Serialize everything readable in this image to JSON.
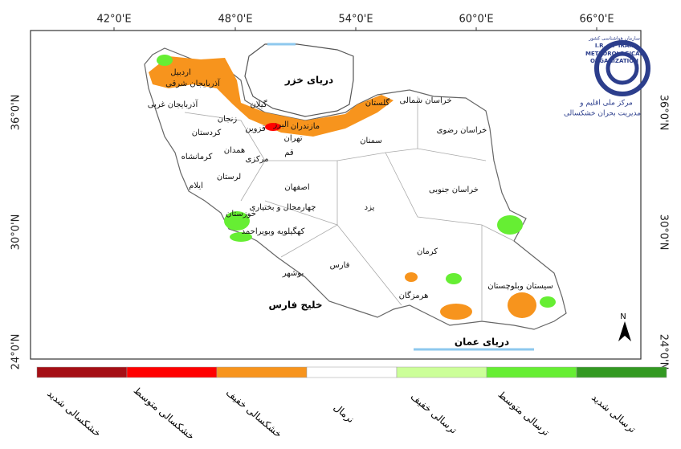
{
  "map": {
    "lon_labels": [
      "42°0'E",
      "48°0'E",
      "54°0'E",
      "60°0'E",
      "66°0'E"
    ],
    "lat_labels": [
      "36°0'N",
      "30°0'N",
      "24°0'N"
    ],
    "seas": [
      "دریای خزر",
      "خلیج فارس",
      "دریای عمان"
    ],
    "provinces": [
      "اردبیل",
      "آذربایجان شرقی",
      "آذربایجان غربی",
      "زنجان",
      "گیلان",
      "مازندران",
      "گلستان",
      "خراسان شمالی",
      "خراسان رضوی",
      "البرز",
      "قزوین",
      "تهران",
      "سمنان",
      "کردستان",
      "همدان",
      "کرمانشاه",
      "قم",
      "مرکزی",
      "لرستان",
      "ایلام",
      "اصفهان",
      "خراسان جنوبی",
      "چهارمحال و بختیاری",
      "یزد",
      "خوزستان",
      "کهگیلویه وبویراحمد",
      "کرمان",
      "فارس",
      "بوشهر",
      "هرمزگان",
      "سیستان وبلوچستان"
    ],
    "north": "N",
    "logo": [
      "سازمان هواشناسی کشور",
      "I.R. OF IRAN",
      "METEOROLOGICAL",
      "ORGANIZATION",
      "مرکز ملی اقلیم و",
      "مدیریت بحران خشکسالی"
    ],
    "legend": [
      {
        "label": "خشکسالی شدید",
        "color": "#a50f15"
      },
      {
        "label": "خشکسالی متوسط",
        "color": "#ff0000"
      },
      {
        "label": "خشکسالی خفیف",
        "color": "#f7941d"
      },
      {
        "label": "نرمال",
        "color": "#ffffff"
      },
      {
        "label": "ترسالی خفیف",
        "color": "#ccff99"
      },
      {
        "label": "ترسالی متوسط",
        "color": "#66ee33"
      },
      {
        "label": "ترسالی شدید",
        "color": "#339922"
      }
    ]
  }
}
